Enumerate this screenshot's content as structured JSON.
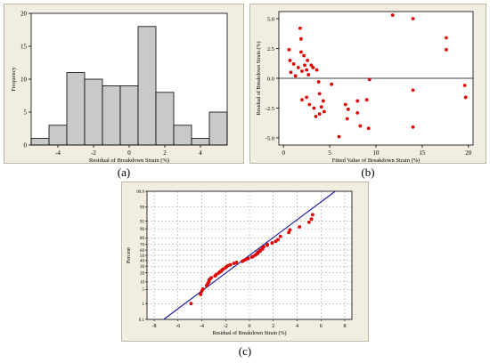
{
  "panel_labels": {
    "a": "(a)",
    "b": "(b)",
    "c": "(c)"
  },
  "chart_data": [
    {
      "type": "bar",
      "subtype": "histogram",
      "xlabel": "Residual of Breakdown Strain (%)",
      "ylabel": "Frequency",
      "x_ticks": [
        -4,
        -2,
        0,
        2,
        4
      ],
      "y_ticks": [
        0,
        5,
        10,
        15,
        20
      ],
      "xlim": [
        -5.5,
        5.5
      ],
      "ylim": [
        0,
        20
      ],
      "bin_width": 1,
      "bin_centers": [
        -5,
        -4,
        -3,
        -2,
        -1,
        0,
        1,
        2,
        3,
        4,
        5
      ],
      "values": [
        1,
        3,
        11,
        10,
        9,
        9,
        18,
        8,
        3,
        1,
        5
      ],
      "bar_color": "#c9c9c9",
      "grid": false
    },
    {
      "type": "scatter",
      "xlabel": "Fitted Value of Breakdown Strain (%)",
      "ylabel": "Residual of Breakdown Strain (%)",
      "x_ticks": [
        0,
        5,
        10,
        15,
        20
      ],
      "y_ticks": [
        -5.0,
        -2.5,
        0.0,
        2.5,
        5.0
      ],
      "y_tick_labels": [
        "-5.0",
        "-2.5",
        "0.0",
        "2.5",
        "5.0"
      ],
      "xlim": [
        -0.5,
        20.5
      ],
      "ylim": [
        -5.6,
        5.6
      ],
      "reference_line_y": 0,
      "point_color": "#e00000",
      "grid": false,
      "points": [
        [
          0.6,
          2.4
        ],
        [
          0.7,
          1.5
        ],
        [
          0.8,
          0.5
        ],
        [
          1.1,
          1.2
        ],
        [
          1.3,
          0.2
        ],
        [
          1.6,
          0.9
        ],
        [
          1.8,
          4.2
        ],
        [
          1.9,
          3.3
        ],
        [
          1.9,
          2.2
        ],
        [
          2.0,
          0.6
        ],
        [
          2.2,
          1.9
        ],
        [
          2.3,
          1.1
        ],
        [
          2.5,
          0.7
        ],
        [
          2.6,
          1.5
        ],
        [
          2.7,
          0.3
        ],
        [
          2.0,
          -1.8
        ],
        [
          2.5,
          -1.6
        ],
        [
          2.8,
          -2.2
        ],
        [
          3.0,
          1.1
        ],
        [
          3.2,
          0.9
        ],
        [
          3.3,
          -2.5
        ],
        [
          3.6,
          0.7
        ],
        [
          3.8,
          -0.3
        ],
        [
          3.9,
          -1.3
        ],
        [
          3.9,
          -3.0
        ],
        [
          4.1,
          -2.4
        ],
        [
          4.3,
          -1.9
        ],
        [
          4.4,
          -2.8
        ],
        [
          5.2,
          -0.5
        ],
        [
          3.5,
          -3.2
        ],
        [
          6.0,
          -4.9
        ],
        [
          6.7,
          -2.2
        ],
        [
          6.9,
          -3.4
        ],
        [
          7.0,
          -2.6
        ],
        [
          8.0,
          -1.9
        ],
        [
          8.0,
          -2.9
        ],
        [
          8.3,
          -4.0
        ],
        [
          9.0,
          -1.8
        ],
        [
          9.2,
          -4.2
        ],
        [
          9.3,
          -0.1
        ],
        [
          11.8,
          5.3
        ],
        [
          14.0,
          5.0
        ],
        [
          14.0,
          -1.0
        ],
        [
          14.0,
          -4.1
        ],
        [
          17.6,
          3.4
        ],
        [
          17.6,
          2.4
        ],
        [
          19.6,
          -0.6
        ],
        [
          19.7,
          -1.6
        ]
      ]
    },
    {
      "type": "scatter",
      "subtype": "normal-probability-plot",
      "xlabel": "Residual of Breakdown Strain (%)",
      "ylabel": "Percent",
      "x_ticks": [
        -8,
        -6,
        -4,
        -2,
        0,
        2,
        4,
        6,
        8
      ],
      "y_ticks": [
        0.1,
        1,
        5,
        10,
        20,
        30,
        40,
        50,
        60,
        70,
        80,
        90,
        95,
        99,
        99.9
      ],
      "y_tick_labels": [
        "0.1",
        "1",
        "5",
        "10",
        "20",
        "30",
        "40",
        "50",
        "60",
        "70",
        "80",
        "90",
        "95",
        "99",
        "99.9"
      ],
      "xlim": [
        -8.6,
        8.6
      ],
      "ylim": [
        0.1,
        99.9
      ],
      "y_scale": "normal-probability",
      "fit_line": {
        "x": [
          -7.2,
          7.2
        ],
        "percent": [
          0.1,
          99.9
        ],
        "color": "#1a1aa6"
      },
      "point_color": "#e00000",
      "grid": true,
      "points": [
        [
          -4.9,
          1.0
        ],
        [
          -4.1,
          3.0
        ],
        [
          -4.0,
          4.2
        ],
        [
          -3.9,
          5.2
        ],
        [
          -3.6,
          7.2
        ],
        [
          -3.5,
          8.7
        ],
        [
          -3.4,
          10.0
        ],
        [
          -3.4,
          11.5
        ],
        [
          -3.3,
          12.8
        ],
        [
          -3.2,
          14.0
        ],
        [
          -2.9,
          16.0
        ],
        [
          -2.8,
          17.5
        ],
        [
          -2.6,
          19.5
        ],
        [
          -2.5,
          21.0
        ],
        [
          -2.4,
          22.0
        ],
        [
          -2.3,
          24.0
        ],
        [
          -2.2,
          25.5
        ],
        [
          -2.0,
          27.5
        ],
        [
          -1.9,
          29.5
        ],
        [
          -1.8,
          31.0
        ],
        [
          -1.6,
          32.5
        ],
        [
          -1.3,
          35.0
        ],
        [
          -1.1,
          36.5
        ],
        [
          -0.6,
          38.5
        ],
        [
          -0.5,
          40.0
        ],
        [
          -0.3,
          42.0
        ],
        [
          -0.1,
          44.0
        ],
        [
          0.2,
          46.5
        ],
        [
          0.3,
          48.0
        ],
        [
          0.5,
          50.5
        ],
        [
          0.6,
          52.5
        ],
        [
          0.7,
          54.0
        ],
        [
          0.7,
          56.0
        ],
        [
          0.9,
          58.0
        ],
        [
          0.9,
          60.0
        ],
        [
          1.1,
          62.0
        ],
        [
          1.1,
          64.0
        ],
        [
          1.2,
          66.0
        ],
        [
          1.5,
          68.5
        ],
        [
          1.5,
          70.0
        ],
        [
          1.9,
          72.5
        ],
        [
          2.2,
          75.0
        ],
        [
          2.4,
          77.5
        ],
        [
          2.6,
          82.0
        ],
        [
          3.3,
          86.5
        ],
        [
          3.4,
          89.0
        ],
        [
          4.2,
          91.5
        ],
        [
          5.0,
          94.5
        ],
        [
          5.2,
          96.0
        ],
        [
          5.3,
          97.5
        ]
      ]
    }
  ]
}
